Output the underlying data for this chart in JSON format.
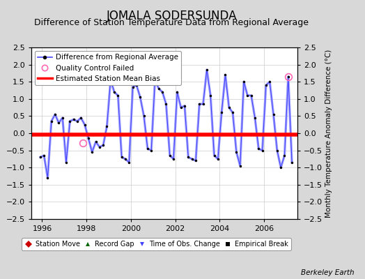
{
  "title": "JOMALA SODERSUNDA",
  "subtitle": "Difference of Station Temperature Data from Regional Average",
  "ylabel": "Monthly Temperature Anomaly Difference (°C)",
  "xlim": [
    1995.5,
    2007.5
  ],
  "ylim": [
    -2.5,
    2.5
  ],
  "yticks": [
    -2.5,
    -2,
    -1.5,
    -1,
    -0.5,
    0,
    0.5,
    1,
    1.5,
    2,
    2.5
  ],
  "xticks": [
    1996,
    1998,
    2000,
    2002,
    2004,
    2006
  ],
  "bias_value": -0.05,
  "line_color": "#4444ff",
  "line_color_light": "#aaaaff",
  "dot_color": "#000000",
  "bias_color": "#ff0000",
  "qc_fail_color": "#ff69b4",
  "background_color": "#d8d8d8",
  "plot_bg_color": "#ffffff",
  "title_fontsize": 12,
  "subtitle_fontsize": 9,
  "berkeley_earth_text": "Berkeley Earth",
  "data": [
    [
      1995.917,
      -0.7
    ],
    [
      1996.083,
      -0.65
    ],
    [
      1996.25,
      -1.3
    ],
    [
      1996.417,
      0.35
    ],
    [
      1996.583,
      0.55
    ],
    [
      1996.75,
      0.3
    ],
    [
      1996.917,
      0.45
    ],
    [
      1997.083,
      -0.85
    ],
    [
      1997.25,
      0.35
    ],
    [
      1997.417,
      0.4
    ],
    [
      1997.583,
      0.35
    ],
    [
      1997.75,
      0.45
    ],
    [
      1997.917,
      0.25
    ],
    [
      1998.083,
      -0.15
    ],
    [
      1998.25,
      -0.55
    ],
    [
      1998.417,
      -0.25
    ],
    [
      1998.583,
      -0.4
    ],
    [
      1998.75,
      -0.35
    ],
    [
      1998.917,
      0.2
    ],
    [
      1999.083,
      1.55
    ],
    [
      1999.25,
      1.2
    ],
    [
      1999.417,
      1.1
    ],
    [
      1999.583,
      -0.7
    ],
    [
      1999.75,
      -0.75
    ],
    [
      1999.917,
      -0.85
    ],
    [
      2000.083,
      1.35
    ],
    [
      2000.25,
      1.4
    ],
    [
      2000.417,
      1.05
    ],
    [
      2000.583,
      0.5
    ],
    [
      2000.75,
      -0.45
    ],
    [
      2000.917,
      -0.5
    ],
    [
      2001.083,
      1.55
    ],
    [
      2001.25,
      1.3
    ],
    [
      2001.417,
      1.2
    ],
    [
      2001.583,
      0.85
    ],
    [
      2001.75,
      -0.65
    ],
    [
      2001.917,
      -0.75
    ],
    [
      2002.083,
      1.2
    ],
    [
      2002.25,
      0.75
    ],
    [
      2002.417,
      0.8
    ],
    [
      2002.583,
      -0.7
    ],
    [
      2002.75,
      -0.75
    ],
    [
      2002.917,
      -0.8
    ],
    [
      2003.083,
      0.85
    ],
    [
      2003.25,
      0.85
    ],
    [
      2003.417,
      1.85
    ],
    [
      2003.583,
      1.1
    ],
    [
      2003.75,
      -0.65
    ],
    [
      2003.917,
      -0.75
    ],
    [
      2004.083,
      0.6
    ],
    [
      2004.25,
      1.7
    ],
    [
      2004.417,
      0.75
    ],
    [
      2004.583,
      0.6
    ],
    [
      2004.75,
      -0.55
    ],
    [
      2004.917,
      -0.95
    ],
    [
      2005.083,
      1.5
    ],
    [
      2005.25,
      1.1
    ],
    [
      2005.417,
      1.1
    ],
    [
      2005.583,
      0.45
    ],
    [
      2005.75,
      -0.45
    ],
    [
      2005.917,
      -0.5
    ],
    [
      2006.083,
      1.4
    ],
    [
      2006.25,
      1.5
    ],
    [
      2006.417,
      0.55
    ],
    [
      2006.583,
      -0.5
    ],
    [
      2006.75,
      -1.0
    ],
    [
      2006.917,
      -0.65
    ],
    [
      2007.083,
      1.65
    ],
    [
      2007.25,
      -0.85
    ]
  ],
  "qc_fail_points": [
    [
      1997.833,
      -0.28
    ],
    [
      2007.083,
      1.65
    ]
  ],
  "legend1_items": [
    {
      "label": "Difference from Regional Average"
    },
    {
      "label": "Quality Control Failed"
    },
    {
      "label": "Estimated Station Mean Bias"
    }
  ],
  "legend2_items": [
    {
      "label": "Station Move"
    },
    {
      "label": "Record Gap"
    },
    {
      "label": "Time of Obs. Change"
    },
    {
      "label": "Empirical Break"
    }
  ]
}
